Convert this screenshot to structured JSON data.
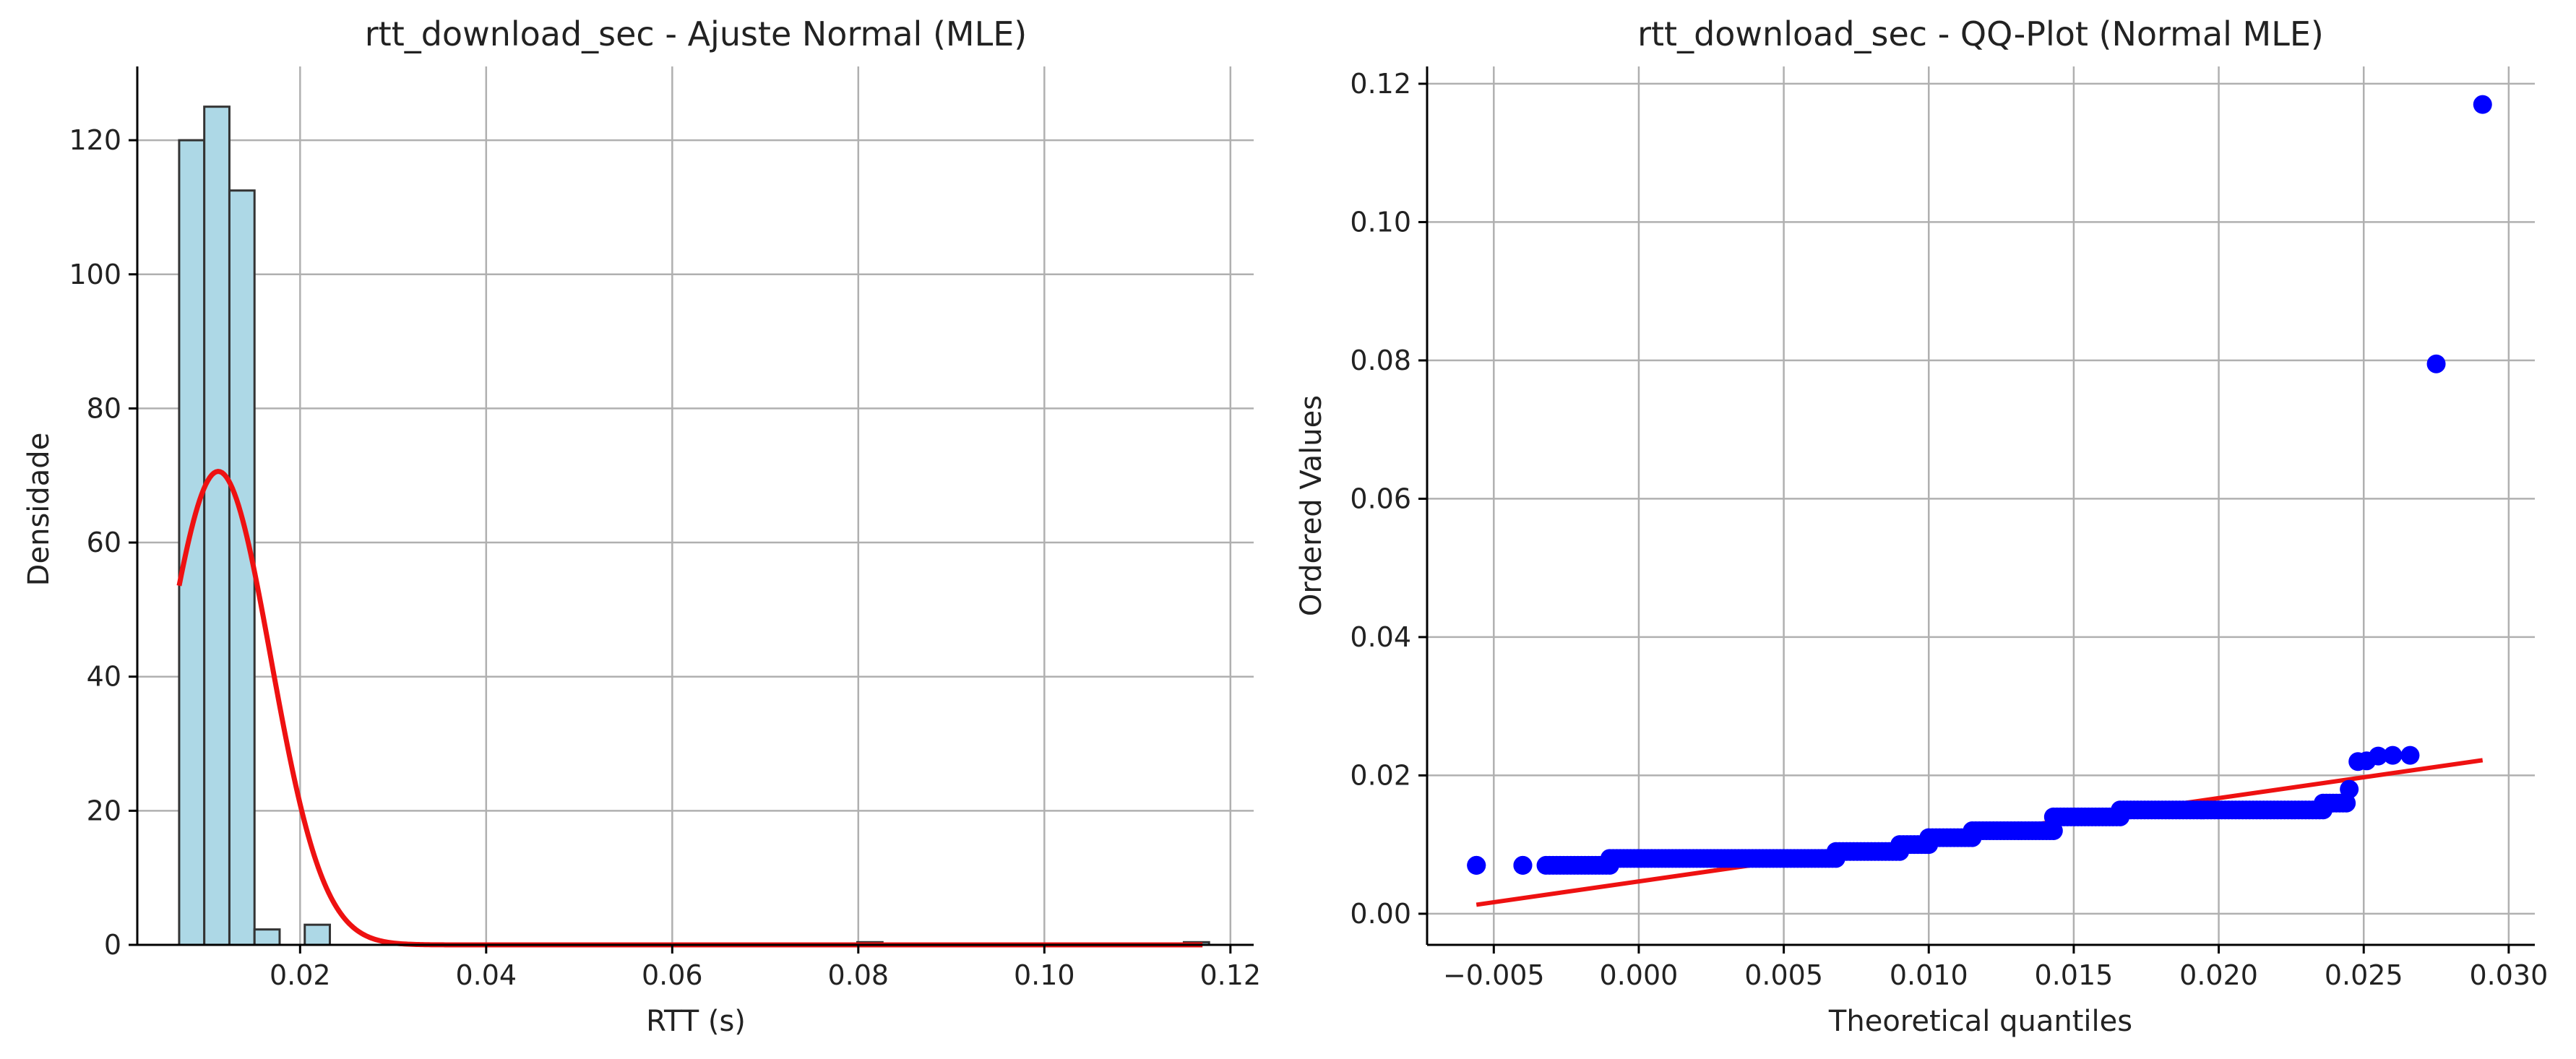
{
  "chart_data": [
    {
      "type": "bar",
      "title": "rtt_download_sec - Ajuste Normal (MLE)",
      "xlabel": "RTT (s)",
      "ylabel": "Densidade",
      "xlim": [
        0.0025,
        0.1225
      ],
      "ylim": [
        0,
        131
      ],
      "x_ticks": [
        0.02,
        0.04,
        0.06,
        0.08,
        0.1,
        0.12
      ],
      "x_tick_labels": [
        "0.02",
        "0.04",
        "0.06",
        "0.08",
        "0.10",
        "0.12"
      ],
      "y_ticks": [
        0,
        20,
        40,
        60,
        80,
        100,
        120
      ],
      "y_tick_labels": [
        "0",
        "20",
        "40",
        "60",
        "80",
        "100",
        "120"
      ],
      "grid": true,
      "histogram": {
        "bin_edges": [
          0.007,
          0.0097,
          0.0124,
          0.0151,
          0.0178,
          0.0205,
          0.0232,
          0.0259,
          0.0286,
          0.0313,
          0.034,
          0.0367,
          0.0394,
          0.0421,
          0.0448,
          0.0475,
          0.0502,
          0.0529,
          0.0556,
          0.0583,
          0.061,
          0.0637,
          0.0664,
          0.0691,
          0.0718,
          0.0745,
          0.0772,
          0.0799,
          0.0826,
          0.0853,
          0.088,
          0.0907,
          0.0934,
          0.0961,
          0.0988,
          0.1015,
          0.1042,
          0.1069,
          0.1096,
          0.1123,
          0.115,
          0.1177
        ],
        "values": [
          120,
          125,
          112.5,
          2.3,
          0,
          3.0,
          0,
          0,
          0,
          0,
          0,
          0,
          0,
          0,
          0,
          0,
          0,
          0,
          0,
          0,
          0,
          0,
          0,
          0,
          0,
          0,
          0,
          0.4,
          0,
          0,
          0,
          0,
          0,
          0,
          0,
          0,
          0,
          0,
          0,
          0,
          0.4
        ],
        "fill": "#add8e6",
        "edge": "#333333"
      },
      "fit": {
        "name": "Normal MLE pdf",
        "mu": 0.0112,
        "sigma": 0.00565,
        "x_range": [
          0.007,
          0.117
        ],
        "color": "#ee1111"
      }
    },
    {
      "type": "scatter",
      "title": "rtt_download_sec - QQ-Plot (Normal MLE)",
      "xlabel": "Theoretical quantiles",
      "ylabel": "Ordered Values",
      "xlim": [
        -0.0073,
        0.0309
      ],
      "ylim": [
        -0.0045,
        0.1225
      ],
      "x_ticks": [
        -0.005,
        0.0,
        0.005,
        0.01,
        0.015,
        0.02,
        0.025,
        0.03
      ],
      "x_tick_labels": [
        "−0.005",
        "0.000",
        "0.005",
        "0.010",
        "0.015",
        "0.020",
        "0.025",
        "0.030"
      ],
      "y_ticks": [
        0.0,
        0.02,
        0.04,
        0.06,
        0.08,
        0.1,
        0.12
      ],
      "y_tick_labels": [
        "0.00",
        "0.02",
        "0.04",
        "0.06",
        "0.08",
        "0.10",
        "0.12"
      ],
      "grid": true,
      "marker_color": "#0000ff",
      "line_color": "#ee1111",
      "fit_line": {
        "x": [
          -0.0056,
          0.0291
        ],
        "y": [
          0.0013,
          0.0222
        ]
      },
      "step_segments": [
        {
          "x0": -0.0056,
          "x1": -0.0056,
          "y": 0.007
        },
        {
          "x0": -0.004,
          "x1": -0.004,
          "y": 0.007
        },
        {
          "x0": -0.0032,
          "x1": -0.001,
          "y": 0.007
        },
        {
          "x0": -0.001,
          "x1": 0.0068,
          "y": 0.008
        },
        {
          "x0": 0.0068,
          "x1": 0.009,
          "y": 0.009
        },
        {
          "x0": 0.009,
          "x1": 0.01,
          "y": 0.01
        },
        {
          "x0": 0.01,
          "x1": 0.0115,
          "y": 0.011
        },
        {
          "x0": 0.0115,
          "x1": 0.0143,
          "y": 0.012
        },
        {
          "x0": 0.0143,
          "x1": 0.0166,
          "y": 0.014
        },
        {
          "x0": 0.0166,
          "x1": 0.0236,
          "y": 0.015
        },
        {
          "x0": 0.0236,
          "x1": 0.0244,
          "y": 0.016
        }
      ],
      "tail_points": [
        {
          "x": 0.0245,
          "y": 0.018
        },
        {
          "x": 0.0248,
          "y": 0.022
        },
        {
          "x": 0.0251,
          "y": 0.0221
        },
        {
          "x": 0.0255,
          "y": 0.0228
        },
        {
          "x": 0.026,
          "y": 0.0229
        },
        {
          "x": 0.0266,
          "y": 0.0229
        },
        {
          "x": 0.0275,
          "y": 0.0795
        },
        {
          "x": 0.0291,
          "y": 0.117
        }
      ]
    }
  ]
}
